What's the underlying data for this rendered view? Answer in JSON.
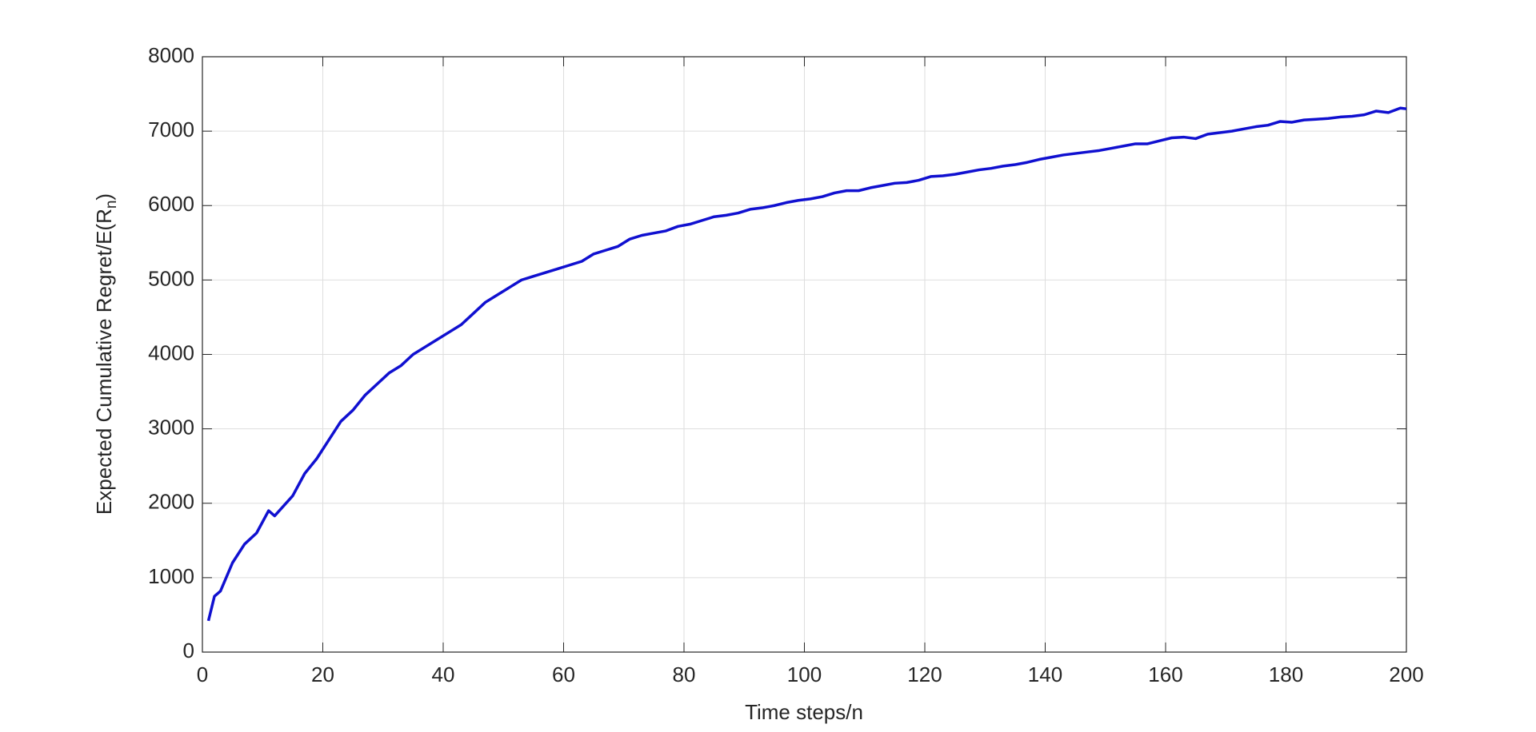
{
  "chart_data": {
    "type": "line",
    "xlabel": "Time steps/n",
    "ylabel": [
      "Expected Cumulative Regret/E(R",
      "n",
      ")"
    ],
    "x": [
      1,
      2,
      3,
      5,
      7,
      9,
      11,
      12,
      15,
      17,
      19,
      21,
      23,
      25,
      27,
      29,
      31,
      33,
      35,
      37,
      39,
      41,
      43,
      45,
      47,
      49,
      51,
      53,
      55,
      57,
      59,
      61,
      63,
      65,
      67,
      69,
      71,
      73,
      75,
      77,
      79,
      81,
      83,
      85,
      87,
      89,
      91,
      93,
      95,
      97,
      99,
      101,
      103,
      105,
      107,
      109,
      111,
      113,
      115,
      117,
      119,
      121,
      123,
      125,
      127,
      129,
      131,
      133,
      135,
      137,
      139,
      141,
      143,
      145,
      147,
      149,
      151,
      153,
      155,
      157,
      159,
      161,
      163,
      165,
      167,
      169,
      171,
      173,
      175,
      177,
      179,
      181,
      183,
      185,
      187,
      189,
      191,
      193,
      195,
      197,
      199,
      200
    ],
    "series": [
      {
        "name": "Expected Cumulative Regret",
        "color": "#1010d0",
        "values": [
          420,
          750,
          820,
          1200,
          1450,
          1600,
          1900,
          1830,
          2100,
          2400,
          2600,
          2850,
          3100,
          3250,
          3450,
          3600,
          3750,
          3850,
          4000,
          4100,
          4200,
          4300,
          4400,
          4550,
          4700,
          4800,
          4900,
          5000,
          5050,
          5100,
          5150,
          5200,
          5250,
          5350,
          5400,
          5450,
          5550,
          5600,
          5630,
          5660,
          5720,
          5750,
          5800,
          5850,
          5870,
          5900,
          5950,
          5970,
          6000,
          6040,
          6070,
          6090,
          6120,
          6170,
          6200,
          6200,
          6240,
          6270,
          6300,
          6310,
          6340,
          6390,
          6400,
          6420,
          6450,
          6480,
          6500,
          6530,
          6550,
          6580,
          6620,
          6650,
          6680,
          6700,
          6720,
          6740,
          6770,
          6800,
          6830,
          6830,
          6870,
          6910,
          6920,
          6900,
          6960,
          6980,
          7000,
          7030,
          7060,
          7080,
          7130,
          7120,
          7150,
          7160,
          7170,
          7190,
          7200,
          7220,
          7270,
          7250,
          7310,
          7300
        ]
      }
    ],
    "xlim": [
      0,
      200
    ],
    "xticks": [
      0,
      20,
      40,
      60,
      80,
      100,
      120,
      140,
      160,
      180,
      200
    ],
    "ylim": [
      0,
      8000
    ],
    "yticks": [
      0,
      1000,
      2000,
      3000,
      4000,
      5000,
      6000,
      7000,
      8000
    ],
    "grid": true
  }
}
